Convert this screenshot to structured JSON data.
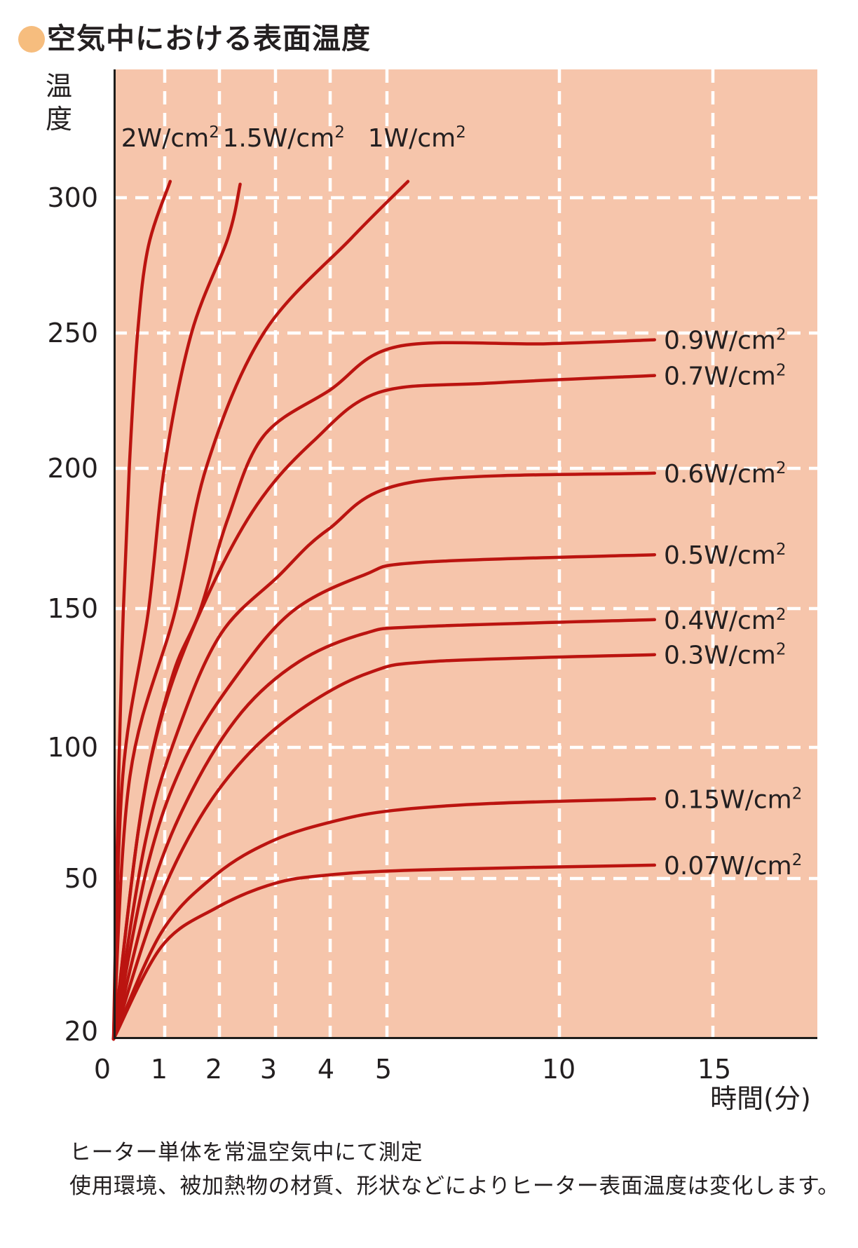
{
  "title": {
    "bullet_icon": "circle",
    "text": "空気中における表面温度"
  },
  "footnotes": [
    "ヒーター単体を常温空気中にて測定",
    "使用環境、被加熱物の材質、形状などによりヒーター表面温度は変化します。"
  ],
  "chart_data": {
    "type": "line",
    "title": "空気中における表面温度",
    "xlabel": "時間(分)",
    "ylabel": "温度",
    "x_ticks": [
      0,
      1,
      2,
      3,
      4,
      5,
      10,
      15
    ],
    "y_ticks": [
      20,
      50,
      100,
      150,
      200,
      250,
      300
    ],
    "ylim": [
      20,
      335
    ],
    "xlim": [
      0,
      18.4
    ],
    "grid": true,
    "x_scale_note": "non-linear time axis: 0-5 min expanded, 5-15 min compressed",
    "legend_position": "inline curve labels",
    "colors": {
      "plot_bg": "#f6c5ab",
      "grid": "#ffffff",
      "curve": "#bb1410",
      "axis": "#1d1d1b",
      "text": "#231f20",
      "bullet": "#f6bd7e"
    },
    "series": [
      {
        "label": "2W/cm²",
        "label_side": "top",
        "label_t": 1.1,
        "points": [
          [
            0,
            20
          ],
          [
            0.1,
            89
          ],
          [
            0.19,
            149
          ],
          [
            0.31,
            201
          ],
          [
            0.47,
            250
          ],
          [
            0.68,
            282
          ],
          [
            1.1,
            306
          ]
        ]
      },
      {
        "label": "1.5W/cm²",
        "label_side": "top",
        "label_t": 3.15,
        "points": [
          [
            0,
            20
          ],
          [
            0.18,
            89
          ],
          [
            0.68,
            149
          ],
          [
            1.0,
            201
          ],
          [
            1.49,
            250
          ],
          [
            2.15,
            285
          ],
          [
            2.37,
            305
          ]
        ]
      },
      {
        "label": "1W/cm²",
        "label_side": "top",
        "label_t": 5.87,
        "points": [
          [
            0,
            20
          ],
          [
            0.32,
            89
          ],
          [
            1.19,
            149
          ],
          [
            1.77,
            201
          ],
          [
            2.79,
            250
          ],
          [
            4.37,
            285
          ],
          [
            5.61,
            306
          ]
        ]
      },
      {
        "label": "0.9W/cm²",
        "label_side": "right",
        "points": [
          [
            0,
            20
          ],
          [
            0.55,
            77
          ],
          [
            1.13,
            125
          ],
          [
            1.64,
            149
          ],
          [
            2.15,
            182
          ],
          [
            2.79,
            212
          ],
          [
            4.0,
            229
          ],
          [
            5.3,
            245
          ],
          [
            9.6,
            246
          ],
          [
            13.1,
            247.5
          ]
        ]
      },
      {
        "label": "0.7W/cm²",
        "label_side": "right",
        "points": [
          [
            0,
            20
          ],
          [
            0.49,
            69
          ],
          [
            1.0,
            115
          ],
          [
            1.77,
            154
          ],
          [
            2.67,
            187
          ],
          [
            3.69,
            210
          ],
          [
            4.85,
            228
          ],
          [
            8.0,
            231.5
          ],
          [
            13.1,
            234.3
          ]
        ]
      },
      {
        "label": "0.6W/cm²",
        "label_side": "right",
        "points": [
          [
            0,
            20
          ],
          [
            0.62,
            64
          ],
          [
            1.26,
            107
          ],
          [
            2.03,
            141
          ],
          [
            3.05,
            161.5
          ],
          [
            3.95,
            178
          ],
          [
            5.7,
            195
          ],
          [
            13.1,
            198.3
          ]
        ]
      },
      {
        "label": "0.5W/cm²",
        "label_side": "right",
        "points": [
          [
            0,
            20
          ],
          [
            0.68,
            56
          ],
          [
            1.38,
            96
          ],
          [
            2.28,
            125
          ],
          [
            3.31,
            149
          ],
          [
            4.6,
            162
          ],
          [
            6.0,
            166.5
          ],
          [
            13.1,
            169.2
          ]
        ]
      },
      {
        "label": "0.4W/cm²",
        "label_side": "right",
        "points": [
          [
            0,
            20
          ],
          [
            0.74,
            48
          ],
          [
            1.51,
            84
          ],
          [
            2.41,
            113
          ],
          [
            3.44,
            131
          ],
          [
            4.6,
            141
          ],
          [
            6.0,
            143.5
          ],
          [
            13.1,
            146
          ]
        ]
      },
      {
        "label": "0.3W/cm²",
        "label_side": "right",
        "points": [
          [
            0,
            20
          ],
          [
            0.81,
            44
          ],
          [
            1.64,
            73
          ],
          [
            2.54,
            98
          ],
          [
            3.56,
            115
          ],
          [
            4.7,
            127
          ],
          [
            6.4,
            131
          ],
          [
            13.1,
            133.4
          ]
        ]
      },
      {
        "label": "0.15W/cm²",
        "label_side": "right",
        "points": [
          [
            0,
            20
          ],
          [
            0.94,
            40
          ],
          [
            1.94,
            51.5
          ],
          [
            2.96,
            64.5
          ],
          [
            4.1,
            72
          ],
          [
            5.2,
            76
          ],
          [
            8.0,
            78.6
          ],
          [
            13.1,
            80.4
          ]
        ]
      },
      {
        "label": "0.07W/cm²",
        "label_side": "right",
        "points": [
          [
            0,
            20
          ],
          [
            0.94,
            37.3
          ],
          [
            1.94,
            44.5
          ],
          [
            2.96,
            49
          ],
          [
            3.95,
            51.3
          ],
          [
            6.0,
            53.3
          ],
          [
            13.1,
            55.1
          ]
        ]
      }
    ]
  }
}
